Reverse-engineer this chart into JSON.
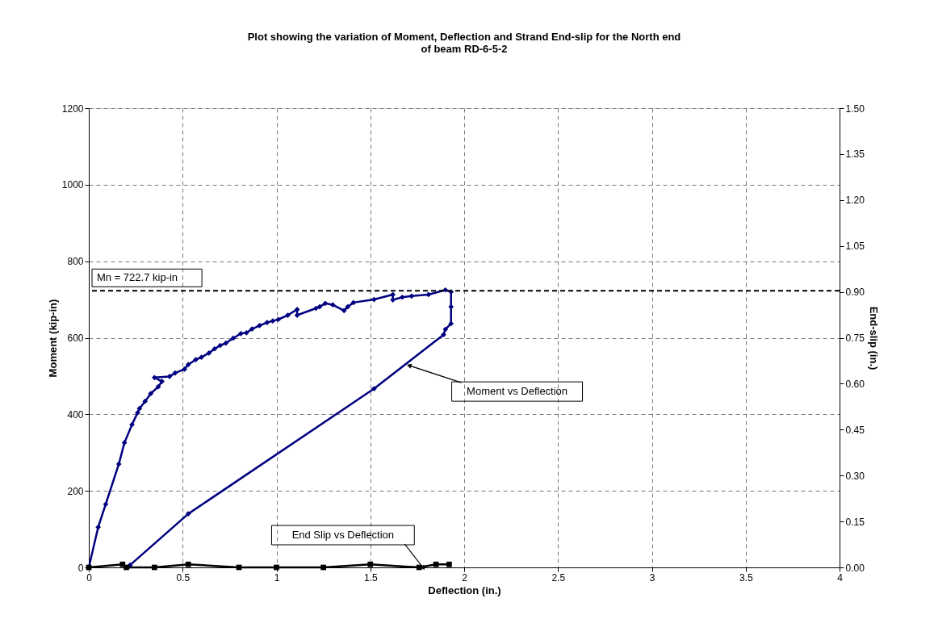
{
  "chart_data": {
    "type": "line",
    "title": "Plot showing the variation of Moment, Deflection and Strand End-slip for the North end of beam RD-6-5-2",
    "xlabel": "Deflection (in.)",
    "ylabel": "Moment (kip-in)",
    "y2label": "End-slip (in.)",
    "xlim": [
      0,
      4
    ],
    "xticks": [
      0,
      0.5,
      1,
      1.5,
      2,
      2.5,
      3,
      3.5,
      4
    ],
    "ylim": [
      0,
      1200
    ],
    "yticks": [
      0,
      200,
      400,
      600,
      800,
      1000,
      1200
    ],
    "y2lim": [
      0,
      1.5
    ],
    "y2ticks": [
      {
        "value": 0,
        "label": "0.00"
      },
      {
        "value": 0.15,
        "label": "0.15"
      },
      {
        "value": 0.3,
        "label": "0.30"
      },
      {
        "value": 0.45,
        "label": "0.45"
      },
      {
        "value": 0.6,
        "label": "0.60"
      },
      {
        "value": 0.75,
        "label": "0.75"
      },
      {
        "value": 0.9,
        "label": "0.90"
      },
      {
        "value": 1.05,
        "label": "1.05"
      },
      {
        "value": 1.2,
        "label": "1.20"
      },
      {
        "value": 1.35,
        "label": "1.35"
      },
      {
        "value": 1.5,
        "label": "1.50"
      }
    ],
    "grid": true,
    "line_style": "solid",
    "series": [
      {
        "color": "#000080",
        "marker": "diamond",
        "x": [
          0,
          0.05,
          0.09,
          0.16,
          0.19,
          0.23,
          0.26,
          0.27,
          0.3,
          0.33,
          0.37,
          0.39,
          0.35,
          0.43,
          0.46,
          0.51,
          0.53,
          0.57,
          0.6,
          0.64,
          0.67,
          0.7,
          0.73,
          0.77,
          0.81,
          0.84,
          0.87,
          0.91,
          0.95,
          0.98,
          1.01,
          1.06,
          1.11,
          1.11,
          1.21,
          1.23,
          1.26,
          1.3,
          1.36,
          1.38,
          1.41,
          1.52,
          1.62,
          1.62,
          1.67,
          1.72,
          1.81,
          1.9,
          1.93,
          1.93,
          1.93,
          1.9,
          1.89,
          1.52,
          0.53,
          0.22,
          0.21
        ],
        "values": [
          0,
          105,
          165,
          270,
          326,
          373,
          404,
          415,
          434,
          454,
          472,
          486,
          496,
          499,
          508,
          518,
          530,
          543,
          549,
          560,
          571,
          580,
          586,
          599,
          611,
          613,
          623,
          632,
          640,
          644,
          648,
          659,
          674,
          659,
          677,
          681,
          690,
          686,
          671,
          681,
          692,
          700,
          713,
          699,
          706,
          709,
          713,
          725,
          720,
          681,
          637,
          622,
          608,
          467,
          140,
          6,
          0
        ]
      },
      {
        "color": "#000000",
        "marker": "square",
        "axis": "y2",
        "x": [
          0,
          0.18,
          0.2,
          0.35,
          0.53,
          0.8,
          1.0,
          1.25,
          1.5,
          1.76,
          1.85,
          1.92
        ],
        "values": [
          0,
          0.01,
          0,
          0,
          0.01,
          0,
          0,
          0,
          0.01,
          0,
          0.01,
          0.01
        ]
      }
    ],
    "ref_lines": [
      {
        "axis": "y",
        "value": 722.7,
        "label": "Mn = 722.7 kip-in",
        "color": "#000000",
        "line_style": "dashed"
      }
    ],
    "annotations": [
      {
        "text": "Moment vs Deflection",
        "x": 1.71,
        "y": 527
      },
      {
        "text": "End Slip vs Deflection",
        "x": 1.78,
        "y": 0
      }
    ]
  }
}
